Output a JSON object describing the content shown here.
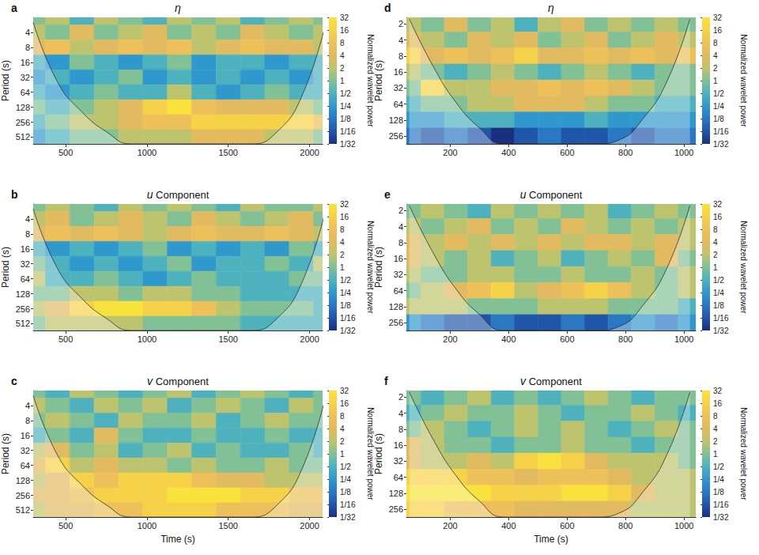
{
  "chart_data": [
    {
      "type": "heatmap",
      "title": "η",
      "panel_label": "a",
      "ylabel": "Period (s)",
      "log": "y",
      "xlim": [
        300,
        2080
      ],
      "xticks": [
        500,
        1000,
        1500,
        2000
      ],
      "ylim": [
        2,
        700
      ],
      "yticks": [
        4,
        8,
        16,
        32,
        64,
        128,
        256,
        512
      ],
      "x": [
        300,
        450,
        600,
        750,
        900,
        1050,
        1200,
        1350,
        1500,
        1650,
        1800,
        1950,
        2100
      ],
      "periods": [
        2,
        4,
        8,
        16,
        32,
        64,
        128,
        256,
        512
      ],
      "power": [
        [
          1,
          2,
          0.5,
          2,
          1,
          0.5,
          2,
          1,
          2,
          0.5,
          1,
          2,
          1
        ],
        [
          2,
          1,
          4,
          1,
          2,
          4,
          1,
          2,
          1,
          4,
          2,
          1,
          2
        ],
        [
          4,
          8,
          2,
          4,
          8,
          4,
          8,
          2,
          4,
          8,
          4,
          4,
          2
        ],
        [
          0.5,
          0.25,
          1,
          0.5,
          0.25,
          0.5,
          1,
          0.25,
          0.5,
          0.5,
          0.25,
          0.5,
          0.5
        ],
        [
          0.25,
          0.5,
          0.25,
          0.5,
          1,
          0.25,
          0.5,
          0.25,
          0.5,
          0.25,
          0.5,
          0.25,
          0.5
        ],
        [
          0.5,
          0.25,
          0.5,
          1,
          0.5,
          0.5,
          2,
          0.5,
          0.25,
          0.5,
          1,
          0.5,
          0.5
        ],
        [
          1,
          0.5,
          1,
          2,
          4,
          16,
          32,
          8,
          4,
          4,
          4,
          2,
          1
        ],
        [
          0.5,
          1,
          2,
          2,
          4,
          8,
          8,
          16,
          16,
          16,
          16,
          16,
          8
        ],
        [
          0.25,
          0.5,
          1,
          1,
          2,
          2,
          2,
          4,
          4,
          4,
          2,
          2,
          1
        ]
      ],
      "coi": [
        2.5,
        40,
        160,
        400,
        700,
        700,
        700,
        700,
        700,
        700,
        400,
        80,
        2.5
      ],
      "colorbar": {
        "label": "Normalized wavelet power",
        "range": [
          0.03125,
          32
        ],
        "ticks": [
          32,
          16,
          8,
          4,
          2,
          1,
          {
            "value": 0.5,
            "label": "1/2"
          },
          {
            "value": 0.25,
            "label": "1/4"
          },
          {
            "value": 0.125,
            "label": "1/8"
          },
          {
            "value": 0.0625,
            "label": "1/16"
          },
          {
            "value": 0.03125,
            "label": "1/32"
          }
        ]
      }
    },
    {
      "type": "heatmap",
      "title": "u Component",
      "panel_label": "b",
      "ylabel": "Period (s)",
      "log": "y",
      "xlim": [
        300,
        2080
      ],
      "xticks": [
        500,
        1000,
        1500,
        2000
      ],
      "ylim": [
        2,
        700
      ],
      "yticks": [
        4,
        8,
        16,
        32,
        64,
        128,
        256,
        512
      ],
      "x": [
        300,
        450,
        600,
        750,
        900,
        1050,
        1200,
        1350,
        1500,
        1650,
        1800,
        1950,
        2100
      ],
      "periods": [
        2,
        4,
        8,
        16,
        32,
        64,
        128,
        256,
        512
      ],
      "power": [
        [
          1,
          2,
          1,
          0.5,
          2,
          1,
          2,
          1,
          0.5,
          2,
          1,
          1,
          2
        ],
        [
          2,
          4,
          1,
          2,
          4,
          2,
          1,
          4,
          2,
          1,
          2,
          4,
          1
        ],
        [
          4,
          8,
          4,
          8,
          4,
          2,
          4,
          8,
          4,
          4,
          8,
          4,
          2
        ],
        [
          0.5,
          0.25,
          0.5,
          0.25,
          0.5,
          1,
          0.25,
          0.5,
          0.25,
          0.5,
          0.25,
          1,
          0.5
        ],
        [
          1,
          0.5,
          0.25,
          0.5,
          0.25,
          0.5,
          1,
          0.25,
          0.5,
          0.5,
          1,
          0.5,
          2
        ],
        [
          2,
          0.5,
          0.5,
          1,
          0.5,
          0.25,
          0.5,
          1,
          0.5,
          0.5,
          0.5,
          1,
          1
        ],
        [
          1,
          1,
          2,
          2,
          1,
          2,
          2,
          1,
          1,
          0.5,
          0.5,
          0.5,
          0.5
        ],
        [
          2,
          4,
          16,
          32,
          32,
          16,
          16,
          8,
          2,
          1,
          1,
          1,
          0.5
        ],
        [
          1,
          2,
          2,
          2,
          2,
          1,
          1,
          1,
          1,
          0.5,
          0.5,
          0.5,
          0.5
        ]
      ],
      "coi": [
        2.5,
        40,
        160,
        400,
        700,
        700,
        700,
        700,
        700,
        700,
        400,
        80,
        2.5
      ],
      "colorbar": {
        "label": "Normalized wavelet power",
        "range": [
          0.03125,
          32
        ],
        "ticks": [
          32,
          16,
          8,
          4,
          2,
          1,
          {
            "value": 0.5,
            "label": "1/2"
          },
          {
            "value": 0.25,
            "label": "1/4"
          },
          {
            "value": 0.125,
            "label": "1/8"
          },
          {
            "value": 0.0625,
            "label": "1/16"
          },
          {
            "value": 0.03125,
            "label": "1/32"
          }
        ]
      }
    },
    {
      "type": "heatmap",
      "title": "v Component",
      "panel_label": "c",
      "xlabel": "Time (s)",
      "ylabel": "Period (s)",
      "log": "y",
      "xlim": [
        300,
        2080
      ],
      "xticks": [
        500,
        1000,
        1500,
        2000
      ],
      "ylim": [
        2,
        700
      ],
      "yticks": [
        4,
        8,
        16,
        32,
        64,
        128,
        256,
        512
      ],
      "x": [
        300,
        450,
        600,
        750,
        900,
        1050,
        1200,
        1350,
        1500,
        1650,
        1800,
        1950,
        2100
      ],
      "periods": [
        2,
        4,
        8,
        16,
        32,
        64,
        128,
        256,
        512
      ],
      "power": [
        [
          1,
          0.5,
          2,
          1,
          0.5,
          1,
          2,
          0.5,
          1,
          2,
          1,
          0.5,
          1
        ],
        [
          2,
          1,
          0.5,
          2,
          1,
          2,
          0.5,
          1,
          2,
          1,
          0.5,
          2,
          1
        ],
        [
          1,
          2,
          1,
          0.5,
          2,
          1,
          1,
          2,
          0.5,
          1,
          2,
          1,
          1
        ],
        [
          0.5,
          1,
          0.5,
          4,
          1,
          0.5,
          0.5,
          1,
          0.5,
          0.5,
          1,
          0.5,
          0.5
        ],
        [
          2,
          4,
          1,
          2,
          0.5,
          1,
          2,
          0.5,
          1,
          0.5,
          0.5,
          1,
          0.5
        ],
        [
          4,
          16,
          2,
          4,
          2,
          2,
          1,
          2,
          1,
          1,
          2,
          1,
          1
        ],
        [
          2,
          4,
          16,
          8,
          16,
          16,
          16,
          8,
          4,
          4,
          2,
          2,
          2
        ],
        [
          4,
          4,
          8,
          16,
          16,
          16,
          32,
          32,
          32,
          16,
          16,
          8,
          8
        ],
        [
          2,
          4,
          4,
          8,
          8,
          16,
          16,
          16,
          8,
          8,
          8,
          4,
          4
        ]
      ],
      "coi": [
        2.5,
        40,
        160,
        400,
        700,
        700,
        700,
        700,
        700,
        700,
        400,
        80,
        2.5
      ],
      "colorbar": {
        "label": "Normalized wavelet power",
        "range": [
          0.03125,
          32
        ],
        "ticks": [
          32,
          16,
          8,
          4,
          2,
          1,
          {
            "value": 0.5,
            "label": "1/2"
          },
          {
            "value": 0.25,
            "label": "1/4"
          },
          {
            "value": 0.125,
            "label": "1/8"
          },
          {
            "value": 0.0625,
            "label": "1/16"
          },
          {
            "value": 0.03125,
            "label": "1/32"
          }
        ]
      }
    },
    {
      "type": "heatmap",
      "title": "η",
      "panel_label": "d",
      "ylabel": "Period (s)",
      "log": "y",
      "xlim": [
        50,
        1040
      ],
      "xticks": [
        200,
        400,
        600,
        800,
        1000
      ],
      "ylim": [
        1.5,
        360
      ],
      "yticks": [
        2,
        4,
        8,
        16,
        32,
        64,
        128,
        256
      ],
      "x": [
        60,
        140,
        220,
        300,
        380,
        460,
        540,
        620,
        700,
        780,
        860,
        940,
        1020
      ],
      "periods": [
        2,
        4,
        8,
        16,
        32,
        64,
        128,
        256
      ],
      "power": [
        [
          2,
          1,
          4,
          1,
          2,
          0.5,
          2,
          4,
          1,
          2,
          1,
          2,
          1
        ],
        [
          4,
          2,
          1,
          4,
          2,
          4,
          1,
          2,
          4,
          1,
          2,
          4,
          2
        ],
        [
          16,
          4,
          8,
          4,
          8,
          16,
          4,
          4,
          8,
          4,
          8,
          4,
          8
        ],
        [
          2,
          1,
          0.5,
          1,
          2,
          1,
          0.5,
          1,
          2,
          1,
          0.5,
          1,
          1
        ],
        [
          1,
          16,
          2,
          2,
          4,
          4,
          8,
          4,
          8,
          4,
          2,
          1,
          1
        ],
        [
          0.5,
          1,
          1,
          2,
          2,
          4,
          4,
          4,
          2,
          1,
          1,
          0.5,
          0.5
        ],
        [
          0.25,
          0.25,
          0.5,
          0.5,
          0.5,
          0.25,
          0.25,
          0.25,
          0.5,
          0.25,
          0.25,
          0.25,
          0.25
        ],
        [
          0.125,
          0.0625,
          0.125,
          0.0625,
          0.03125,
          0.0625,
          0.125,
          0.0625,
          0.0625,
          0.125,
          0.0625,
          0.125,
          0.125
        ]
      ],
      "coi": [
        1.6,
        12,
        60,
        180,
        360,
        360,
        360,
        360,
        360,
        300,
        120,
        25,
        1.6
      ],
      "colorbar": {
        "label": "Normalized wavelet power",
        "range": [
          0.03125,
          32
        ],
        "ticks": [
          32,
          16,
          8,
          4,
          2,
          1,
          {
            "value": 0.5,
            "label": "1/2"
          },
          {
            "value": 0.25,
            "label": "1/4"
          },
          {
            "value": 0.125,
            "label": "1/8"
          },
          {
            "value": 0.0625,
            "label": "1/16"
          },
          {
            "value": 0.03125,
            "label": "1/32"
          }
        ]
      }
    },
    {
      "type": "heatmap",
      "title": "u Component",
      "panel_label": "e",
      "ylabel": "Period (s)",
      "log": "y",
      "xlim": [
        50,
        1040
      ],
      "xticks": [
        200,
        400,
        600,
        800,
        1000
      ],
      "ylim": [
        1.5,
        360
      ],
      "yticks": [
        2,
        4,
        8,
        16,
        32,
        64,
        128,
        256
      ],
      "x": [
        60,
        140,
        220,
        300,
        380,
        460,
        540,
        620,
        700,
        780,
        860,
        940,
        1020
      ],
      "periods": [
        2,
        4,
        8,
        16,
        32,
        64,
        128,
        256
      ],
      "power": [
        [
          1,
          2,
          1,
          0.5,
          2,
          1,
          2,
          1,
          2,
          0.5,
          1,
          2,
          1
        ],
        [
          2,
          1,
          2,
          4,
          1,
          2,
          1,
          4,
          2,
          1,
          2,
          1,
          2
        ],
        [
          4,
          2,
          4,
          2,
          4,
          2,
          4,
          2,
          4,
          4,
          2,
          4,
          2
        ],
        [
          4,
          2,
          1,
          2,
          0.5,
          1,
          2,
          0.5,
          1,
          2,
          1,
          4,
          1
        ],
        [
          2,
          1,
          1,
          2,
          2,
          1,
          1,
          2,
          1,
          1,
          2,
          1,
          2
        ],
        [
          1,
          2,
          4,
          8,
          16,
          2,
          4,
          8,
          16,
          8,
          2,
          1,
          2
        ],
        [
          2,
          2,
          2,
          1,
          1,
          1,
          2,
          2,
          2,
          1,
          1,
          1,
          0.5
        ],
        [
          0.25,
          0.125,
          0.0625,
          0.0625,
          0.125,
          0.0625,
          0.0625,
          0.125,
          0.0625,
          0.125,
          0.25,
          0.125,
          0.25
        ]
      ],
      "coi": [
        1.6,
        12,
        60,
        180,
        360,
        360,
        360,
        360,
        360,
        300,
        120,
        25,
        1.6
      ],
      "colorbar": {
        "label": "Normalized wavelet power",
        "range": [
          0.03125,
          32
        ],
        "ticks": [
          32,
          16,
          8,
          4,
          2,
          1,
          {
            "value": 0.5,
            "label": "1/2"
          },
          {
            "value": 0.25,
            "label": "1/4"
          },
          {
            "value": 0.125,
            "label": "1/8"
          },
          {
            "value": 0.0625,
            "label": "1/16"
          },
          {
            "value": 0.03125,
            "label": "1/32"
          }
        ]
      }
    },
    {
      "type": "heatmap",
      "title": "v Component",
      "panel_label": "f",
      "xlabel": "Time (s)",
      "ylabel": "Period (s)",
      "log": "y",
      "xlim": [
        50,
        1040
      ],
      "xticks": [
        200,
        400,
        600,
        800,
        1000
      ],
      "ylim": [
        1.5,
        360
      ],
      "yticks": [
        2,
        4,
        8,
        16,
        32,
        64,
        128,
        256
      ],
      "x": [
        60,
        140,
        220,
        300,
        380,
        460,
        540,
        620,
        700,
        780,
        860,
        940,
        1020
      ],
      "periods": [
        2,
        4,
        8,
        16,
        32,
        64,
        128,
        256
      ],
      "power": [
        [
          1,
          0.5,
          1,
          2,
          0.5,
          1,
          0.5,
          1,
          2,
          1,
          0.5,
          1,
          1
        ],
        [
          0.5,
          1,
          2,
          1,
          1,
          2,
          1,
          0.5,
          1,
          1,
          2,
          1,
          0.5
        ],
        [
          1,
          2,
          1,
          0.5,
          1,
          2,
          1,
          2,
          1,
          0.5,
          1,
          2,
          1
        ],
        [
          4,
          2,
          1,
          1,
          0.5,
          1,
          1,
          2,
          1,
          1,
          0.5,
          1,
          1
        ],
        [
          4,
          2,
          2,
          4,
          2,
          16,
          32,
          16,
          4,
          2,
          2,
          2,
          1
        ],
        [
          16,
          16,
          16,
          8,
          8,
          4,
          8,
          8,
          8,
          4,
          2,
          2,
          2
        ],
        [
          32,
          32,
          32,
          32,
          16,
          16,
          16,
          32,
          32,
          16,
          4,
          2,
          2
        ],
        [
          16,
          16,
          8,
          8,
          8,
          4,
          4,
          4,
          4,
          4,
          2,
          2,
          2
        ]
      ],
      "coi": [
        1.6,
        12,
        60,
        180,
        360,
        360,
        360,
        360,
        360,
        300,
        120,
        25,
        1.6
      ],
      "colorbar": {
        "label": "Normalized wavelet power",
        "range": [
          0.03125,
          32
        ],
        "ticks": [
          32,
          16,
          8,
          4,
          2,
          1,
          {
            "value": 0.5,
            "label": "1/2"
          },
          {
            "value": 0.25,
            "label": "1/4"
          },
          {
            "value": 0.125,
            "label": "1/8"
          },
          {
            "value": 0.0625,
            "label": "1/16"
          },
          {
            "value": 0.03125,
            "label": "1/32"
          }
        ]
      }
    }
  ]
}
